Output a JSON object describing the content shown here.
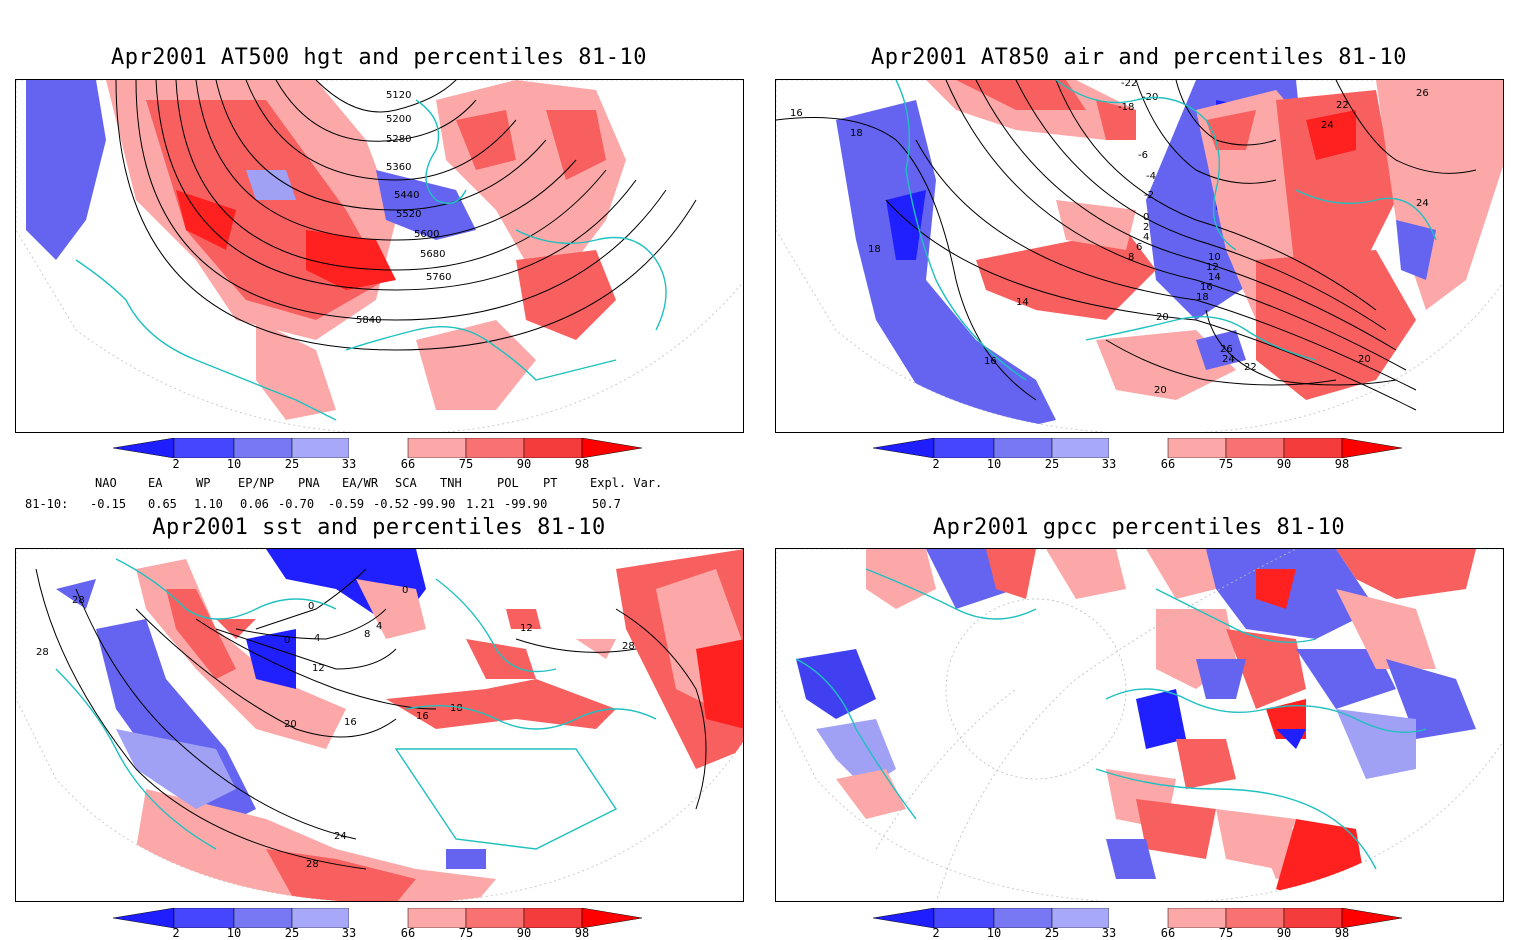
{
  "panels": [
    {
      "id": "hgt",
      "title": "Apr2001 AT500 hgt and percentiles 81-10",
      "contour_labels": [
        "5120",
        "5200",
        "5280",
        "5360",
        "5440",
        "5520",
        "5600",
        "5680",
        "5760",
        "5840"
      ]
    },
    {
      "id": "air",
      "title": "Apr2001 AT850 air and percentiles 81-10",
      "contour_labels": [
        "-22",
        "-20",
        "-18",
        "-6",
        "-4",
        "-2",
        "0",
        "2",
        "4",
        "6",
        "8",
        "10",
        "12",
        "14",
        "16",
        "18",
        "20",
        "22",
        "24",
        "26",
        "14",
        "16",
        "18",
        "20",
        "22",
        "24",
        "26",
        "20",
        "16",
        "18",
        "24"
      ]
    },
    {
      "id": "sst",
      "title": "Apr2001 sst and percentiles 81-10",
      "contour_labels": [
        "28",
        "28",
        "0",
        "0",
        "4",
        "8",
        "12",
        "16",
        "20",
        "24",
        "28",
        "16",
        "18",
        "12",
        "28",
        "4",
        "0"
      ]
    },
    {
      "id": "gpcc",
      "title": "Apr2001 gpcc percentiles 81-10",
      "contour_labels": []
    }
  ],
  "colorbar": {
    "ticks": [
      "2",
      "10",
      "25",
      "33",
      "66",
      "75",
      "90",
      "98"
    ],
    "colors": [
      "#1e1eff",
      "#4646ff",
      "#7878f5",
      "#a8a8f8",
      "#ffffff",
      "#fca8a8",
      "#f87272",
      "#f53c3c",
      "#ff0000"
    ]
  },
  "teleconnections": {
    "headers": [
      "NAO",
      "EA",
      "WP",
      "EP/NP",
      "PNA",
      "EA/WR",
      "SCA",
      "TNH",
      "POL",
      "PT",
      "Expl. Var."
    ],
    "row_label": "81-10:",
    "values": [
      "-0.15",
      "0.65",
      "1.10",
      "0.06",
      "-0.70",
      "-0.59",
      "-0.52",
      "-99.90",
      "1.21",
      "-99.90",
      "50.7"
    ]
  },
  "colors": {
    "coast": "#20c0c0",
    "blue_strong": "#2020ff",
    "blue_mid": "#6464f0",
    "blue_light": "#a0a0f5",
    "red_strong": "#ff2020",
    "red_mid": "#f86060",
    "red_light": "#fca8a8"
  }
}
